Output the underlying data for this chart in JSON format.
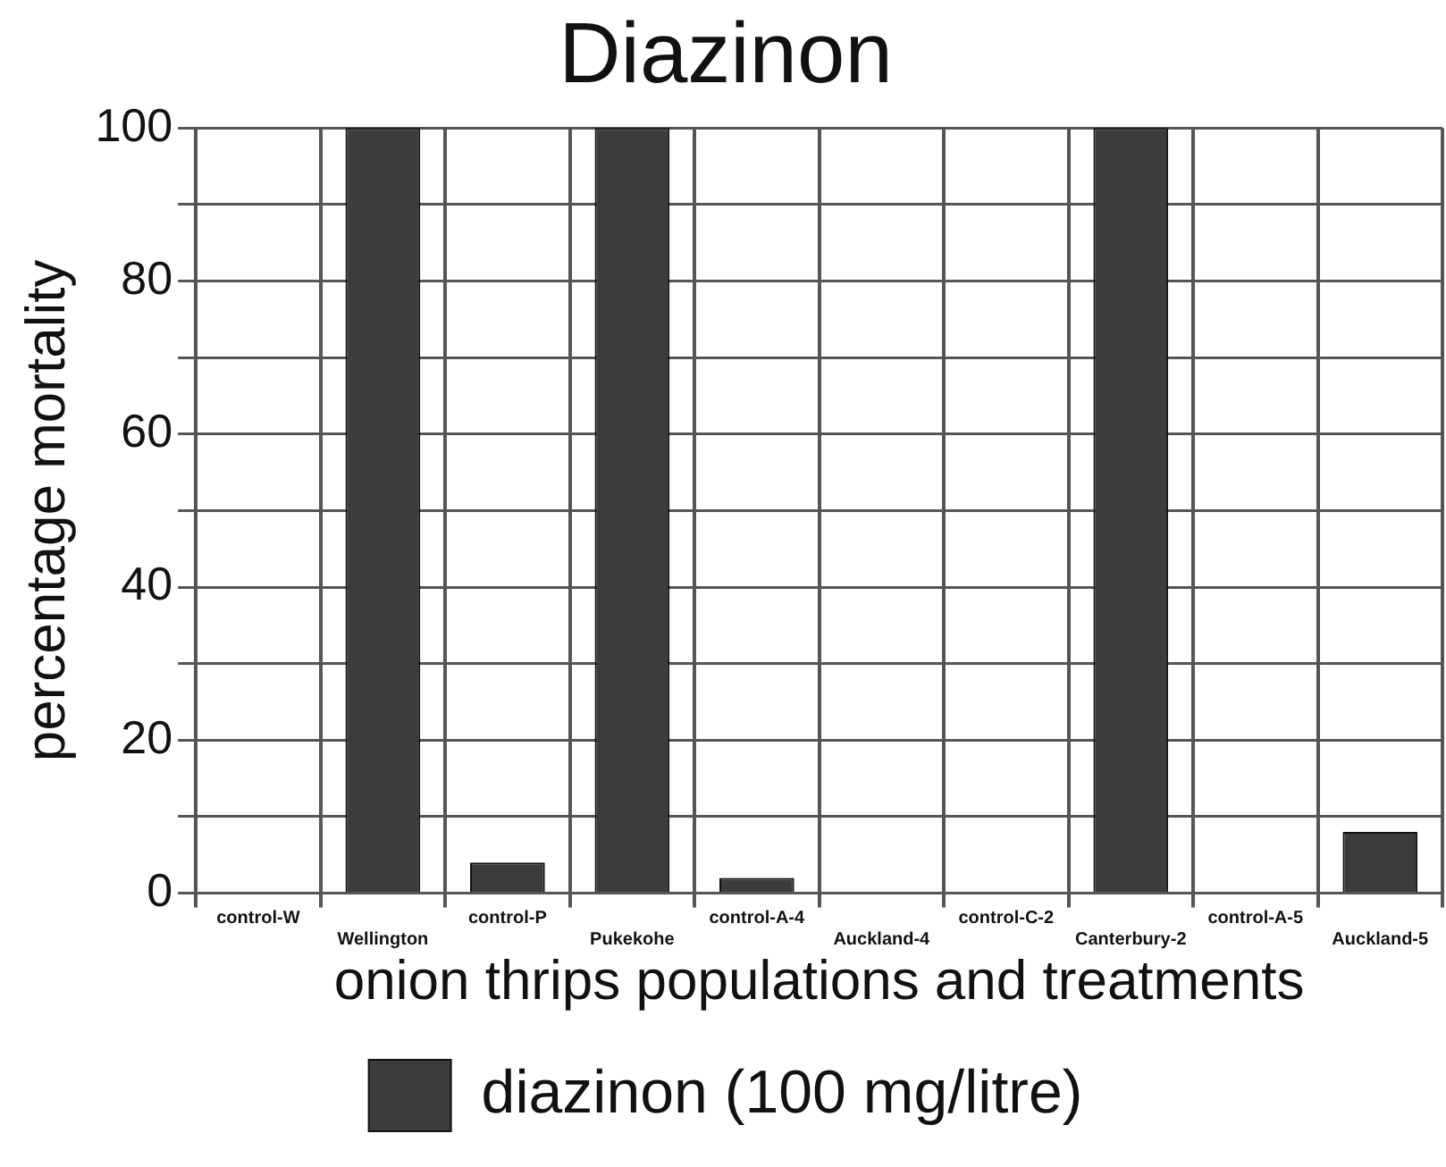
{
  "chart_data": {
    "type": "bar",
    "title": "Diazinon",
    "xlabel": "onion thrips populations and treatments",
    "ylabel": "percentage mortality",
    "categories": [
      "control-W",
      "Wellington",
      "control-P",
      "Pukekohe",
      "control-A-4",
      "Auckland-4",
      "control-C-2",
      "Canterbury-2",
      "control-A-5",
      "Auckland-5"
    ],
    "series": [
      {
        "name": "diazinon (100 mg/litre)",
        "color": "#3c3c3c",
        "values": [
          0,
          100,
          4,
          100,
          2,
          0,
          0,
          100,
          0,
          8
        ]
      }
    ],
    "ylim": [
      0,
      100
    ],
    "yticks": [
      0,
      {
        "value": 10,
        "label": null
      },
      20,
      {
        "value": 30,
        "label": null
      },
      40,
      {
        "value": 50,
        "label": null
      },
      60,
      {
        "value": 70,
        "label": null
      },
      80,
      {
        "value": 90,
        "label": null
      },
      100
    ],
    "grid": true,
    "legend": "bottom"
  }
}
